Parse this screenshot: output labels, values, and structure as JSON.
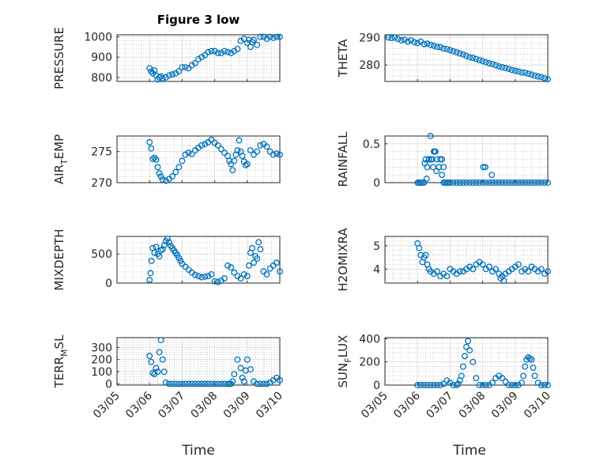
{
  "figure": {
    "title": "Figure 3 low",
    "xlabel": "Time",
    "marker_color": "#0072BD",
    "x_tick_labels": [
      "03/05",
      "03/06",
      "03/07",
      "03/08",
      "03/09",
      "03/10"
    ]
  },
  "chart_data": [
    {
      "type": "scatter",
      "name": "pressure",
      "ylabel": "PRESSURE",
      "xlim": [
        0,
        5
      ],
      "ylim": [
        780,
        1010
      ],
      "yticks": [
        800,
        900,
        1000
      ],
      "x": [
        1.0,
        1.05,
        1.1,
        1.15,
        1.2,
        1.25,
        1.3,
        1.35,
        1.4,
        1.5,
        1.6,
        1.7,
        1.8,
        1.9,
        2.0,
        2.1,
        2.2,
        2.3,
        2.4,
        2.5,
        2.6,
        2.7,
        2.8,
        2.9,
        3.0,
        3.1,
        3.2,
        3.3,
        3.4,
        3.5,
        3.6,
        3.7,
        3.8,
        3.9,
        4.0,
        4.05,
        4.1,
        4.15,
        4.2,
        4.3,
        4.4,
        4.5,
        4.6,
        4.7,
        4.8,
        4.9,
        5.0
      ],
      "y": [
        845,
        830,
        820,
        835,
        810,
        790,
        800,
        805,
        795,
        800,
        810,
        815,
        820,
        830,
        850,
        850,
        845,
        860,
        870,
        890,
        900,
        910,
        925,
        930,
        930,
        920,
        920,
        930,
        925,
        920,
        930,
        940,
        980,
        990,
        970,
        985,
        950,
        975,
        985,
        960,
        1000,
        1000,
        990,
        1000,
        995,
        1000,
        1000
      ]
    },
    {
      "type": "scatter",
      "name": "theta",
      "ylabel": "THETA",
      "xlim": [
        0,
        5
      ],
      "ylim": [
        274,
        291
      ],
      "yticks": [
        280,
        290
      ],
      "x": [
        0.1,
        0.2,
        0.3,
        0.4,
        0.5,
        0.6,
        0.7,
        0.8,
        0.9,
        1.0,
        1.1,
        1.2,
        1.3,
        1.4,
        1.5,
        1.6,
        1.7,
        1.8,
        1.9,
        2.0,
        2.1,
        2.2,
        2.3,
        2.4,
        2.5,
        2.6,
        2.7,
        2.8,
        2.9,
        3.0,
        3.1,
        3.2,
        3.3,
        3.4,
        3.5,
        3.6,
        3.7,
        3.8,
        3.9,
        4.0,
        4.1,
        4.2,
        4.3,
        4.4,
        4.5,
        4.6,
        4.7,
        4.8,
        4.9,
        5.0
      ],
      "y": [
        290,
        289.8,
        290,
        289.5,
        289,
        289.2,
        288.5,
        289,
        288.3,
        288,
        288.5,
        287.6,
        287.8,
        287.3,
        287,
        286.6,
        286.5,
        286,
        285.8,
        285.4,
        285,
        284.6,
        284.2,
        283.8,
        283.3,
        282.8,
        282.6,
        282.2,
        281.8,
        281.4,
        281,
        280.6,
        280.3,
        279.9,
        279.5,
        279.2,
        278.9,
        278.6,
        278.2,
        277.9,
        277.6,
        277.3,
        277.2,
        276.8,
        276.5,
        276.1,
        275.8,
        275.6,
        275.2,
        274.8
      ]
    },
    {
      "type": "scatter",
      "name": "air_temp",
      "ylabel": "AIR_TEMP",
      "xlim": [
        0,
        5
      ],
      "ylim": [
        270,
        277.5
      ],
      "yticks": [
        270,
        275
      ],
      "x": [
        1.0,
        1.05,
        1.1,
        1.15,
        1.2,
        1.25,
        1.3,
        1.35,
        1.4,
        1.5,
        1.6,
        1.7,
        1.8,
        1.9,
        2.0,
        2.1,
        2.2,
        2.3,
        2.4,
        2.5,
        2.6,
        2.7,
        2.8,
        2.9,
        3.0,
        3.1,
        3.2,
        3.3,
        3.4,
        3.45,
        3.5,
        3.55,
        3.6,
        3.65,
        3.7,
        3.75,
        3.8,
        3.85,
        3.9,
        3.95,
        4.0,
        4.1,
        4.2,
        4.3,
        4.4,
        4.5,
        4.6,
        4.7,
        4.8,
        4.9,
        5.0
      ],
      "y": [
        276.5,
        275.5,
        273.8,
        274,
        273.7,
        272.5,
        271.5,
        271,
        270.5,
        270.3,
        270.6,
        271,
        271.7,
        272.5,
        273.5,
        274.5,
        274.8,
        274.6,
        275.2,
        275.6,
        276,
        276.2,
        276.5,
        276.9,
        276.4,
        276,
        275.4,
        274.8,
        274.3,
        273.5,
        273,
        272,
        273.5,
        274.5,
        275.2,
        276.8,
        275,
        274.3,
        273.4,
        272.8,
        273,
        275.2,
        274.5,
        275,
        276,
        276.2,
        275.8,
        275,
        274.5,
        274.7,
        274.5
      ]
    },
    {
      "type": "scatter",
      "name": "rainfall",
      "ylabel": "RAINFALL",
      "xlim": [
        0,
        5
      ],
      "ylim": [
        0,
        0.6
      ],
      "yticks": [
        0,
        0.5
      ],
      "x": [
        1.0,
        1.05,
        1.1,
        1.15,
        1.2,
        1.25,
        1.3,
        1.35,
        1.4,
        1.45,
        1.5,
        1.55,
        1.6,
        1.65,
        1.7,
        1.75,
        1.8,
        1.85,
        1.9,
        1.95,
        2.0,
        2.1,
        2.2,
        2.3,
        2.4,
        2.5,
        2.6,
        2.7,
        2.8,
        2.9,
        3.0,
        3.1,
        3.2,
        3.3,
        3.4,
        3.5,
        3.6,
        3.7,
        3.8,
        3.9,
        4.0,
        4.1,
        4.2,
        4.3,
        4.4,
        4.5,
        4.6,
        4.7,
        4.8,
        4.9,
        5.0,
        1.22,
        1.28,
        1.35,
        1.42,
        1.48,
        1.53,
        1.58,
        1.75,
        1.8,
        3.02,
        3.08,
        3.28
      ],
      "y": [
        0,
        0,
        0,
        0,
        0,
        0.3,
        0.2,
        0.3,
        0.6,
        0.3,
        0.4,
        0.4,
        0.3,
        0.2,
        0.3,
        0.1,
        0,
        0,
        0,
        0,
        0,
        0,
        0,
        0,
        0,
        0,
        0,
        0,
        0,
        0,
        0,
        0,
        0,
        0,
        0,
        0,
        0,
        0,
        0,
        0,
        0,
        0,
        0,
        0,
        0,
        0,
        0,
        0,
        0,
        0,
        0,
        0.25,
        0.05,
        0.3,
        0.3,
        0.2,
        0.4,
        0.15,
        0.3,
        0.2,
        0.2,
        0.2,
        0.1
      ]
    },
    {
      "type": "scatter",
      "name": "mixdepth",
      "ylabel": "MIXDEPTH",
      "xlim": [
        0,
        5
      ],
      "ylim": [
        0,
        800
      ],
      "yticks": [
        0,
        500
      ],
      "x": [
        1.0,
        1.03,
        1.06,
        1.1,
        1.15,
        1.2,
        1.25,
        1.3,
        1.35,
        1.4,
        1.45,
        1.5,
        1.55,
        1.6,
        1.65,
        1.7,
        1.75,
        1.8,
        1.85,
        1.9,
        1.95,
        2.0,
        2.1,
        2.2,
        2.3,
        2.4,
        2.5,
        2.6,
        2.7,
        2.8,
        2.9,
        3.0,
        3.1,
        3.2,
        3.3,
        3.4,
        3.5,
        3.6,
        3.7,
        3.8,
        3.9,
        4.0,
        4.05,
        4.1,
        4.15,
        4.2,
        4.25,
        4.3,
        4.35,
        4.4,
        4.5,
        4.6,
        4.7,
        4.8,
        4.9,
        5.0
      ],
      "y": [
        50,
        170,
        380,
        600,
        520,
        620,
        500,
        460,
        560,
        580,
        650,
        720,
        760,
        700,
        640,
        600,
        560,
        520,
        480,
        430,
        380,
        330,
        280,
        230,
        180,
        140,
        120,
        100,
        110,
        120,
        150,
        30,
        20,
        40,
        80,
        300,
        270,
        180,
        120,
        80,
        150,
        120,
        300,
        520,
        600,
        350,
        460,
        420,
        700,
        580,
        200,
        150,
        250,
        300,
        350,
        200
      ]
    },
    {
      "type": "scatter",
      "name": "h2omixra",
      "ylabel": "H2OMIXRA",
      "xlim": [
        0,
        5
      ],
      "ylim": [
        3.4,
        5.4
      ],
      "yticks": [
        4,
        5
      ],
      "x": [
        1.0,
        1.05,
        1.1,
        1.15,
        1.2,
        1.25,
        1.3,
        1.35,
        1.4,
        1.5,
        1.6,
        1.7,
        1.8,
        1.9,
        2.0,
        2.1,
        2.2,
        2.3,
        2.4,
        2.5,
        2.6,
        2.7,
        2.8,
        2.9,
        3.0,
        3.1,
        3.2,
        3.3,
        3.4,
        3.5,
        3.55,
        3.6,
        3.65,
        3.7,
        3.8,
        3.9,
        4.0,
        4.1,
        4.2,
        4.3,
        4.4,
        4.5,
        4.6,
        4.7,
        4.8,
        4.9,
        5.0
      ],
      "y": [
        5.1,
        4.9,
        4.6,
        4.3,
        4.5,
        4.6,
        4.2,
        4.0,
        3.9,
        3.8,
        3.9,
        3.7,
        3.8,
        3.7,
        4.0,
        3.9,
        3.8,
        3.9,
        3.9,
        4.0,
        4.1,
        4.0,
        4.2,
        4.3,
        4.2,
        4.0,
        4.1,
        3.9,
        4.0,
        3.8,
        3.6,
        3.7,
        3.5,
        3.8,
        3.9,
        4.0,
        4.1,
        4.2,
        3.9,
        4.0,
        3.9,
        4.1,
        4.0,
        3.9,
        4.0,
        3.8,
        3.9
      ]
    },
    {
      "type": "scatter",
      "name": "terr_msl",
      "ylabel": "TERR_MSL",
      "xlim": [
        0,
        5
      ],
      "ylim": [
        -10,
        380
      ],
      "yticks": [
        0,
        100,
        200,
        300
      ],
      "x": [
        1.0,
        1.05,
        1.1,
        1.15,
        1.2,
        1.25,
        1.3,
        1.35,
        1.4,
        1.45,
        1.5,
        1.6,
        1.7,
        1.8,
        1.9,
        2.0,
        2.1,
        2.2,
        2.3,
        2.4,
        2.5,
        2.6,
        2.7,
        2.8,
        2.9,
        3.0,
        3.1,
        3.2,
        3.3,
        3.4,
        3.45,
        3.5,
        3.55,
        3.6,
        3.7,
        3.8,
        3.85,
        3.9,
        3.95,
        4.0,
        4.1,
        4.2,
        4.3,
        4.4,
        4.5,
        4.6,
        4.7,
        4.8,
        4.9,
        5.0
      ],
      "y": [
        230,
        180,
        90,
        80,
        130,
        100,
        260,
        360,
        200,
        100,
        10,
        0,
        0,
        0,
        0,
        0,
        0,
        0,
        0,
        0,
        0,
        0,
        0,
        0,
        0,
        0,
        0,
        0,
        0,
        0,
        0,
        0,
        20,
        80,
        200,
        130,
        50,
        20,
        110,
        200,
        120,
        20,
        0,
        0,
        0,
        0,
        10,
        30,
        50,
        30
      ]
    },
    {
      "type": "scatter",
      "name": "sun_flux",
      "ylabel": "SUN_FLUX",
      "xlim": [
        0,
        5
      ],
      "ylim": [
        0,
        410
      ],
      "yticks": [
        0,
        200,
        400
      ],
      "x": [
        1.0,
        1.1,
        1.2,
        1.3,
        1.4,
        1.5,
        1.6,
        1.7,
        1.8,
        1.9,
        2.0,
        2.1,
        2.2,
        2.25,
        2.3,
        2.35,
        2.4,
        2.45,
        2.5,
        2.55,
        2.6,
        2.7,
        2.8,
        2.9,
        3.0,
        3.1,
        3.2,
        3.3,
        3.4,
        3.5,
        3.6,
        3.7,
        3.8,
        3.9,
        4.0,
        4.1,
        4.2,
        4.25,
        4.3,
        4.35,
        4.4,
        4.45,
        4.5,
        4.55,
        4.6,
        4.7,
        4.8,
        4.9,
        5.0
      ],
      "y": [
        0,
        0,
        0,
        0,
        0,
        0,
        0,
        0,
        10,
        40,
        20,
        0,
        0,
        10,
        40,
        80,
        160,
        250,
        330,
        380,
        300,
        200,
        60,
        0,
        0,
        0,
        0,
        20,
        60,
        80,
        60,
        30,
        0,
        0,
        0,
        0,
        20,
        80,
        160,
        220,
        240,
        230,
        220,
        150,
        80,
        20,
        0,
        0,
        0
      ]
    }
  ]
}
